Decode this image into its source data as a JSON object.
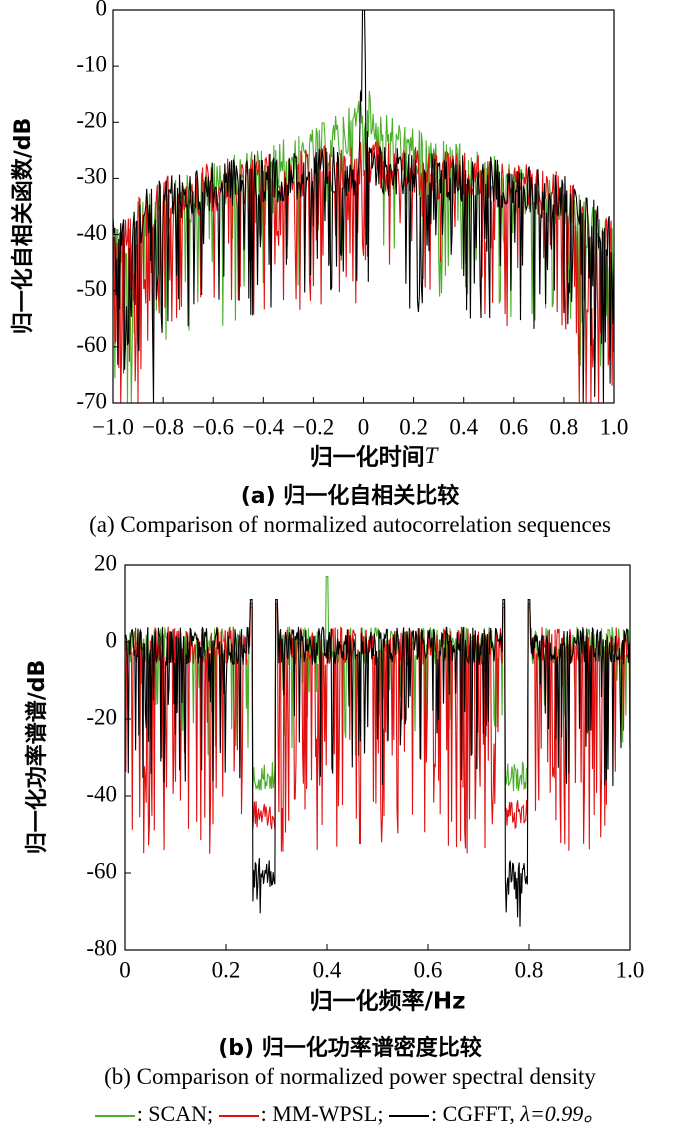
{
  "chart_data": [
    {
      "type": "line",
      "xlabel": "归一化时间",
      "xlabel_var": "T",
      "ylabel": "归一化自相关函数/dB",
      "xlim": [
        -1.0,
        1.0
      ],
      "ylim": [
        -70,
        0
      ],
      "xticks": [
        "−1.0",
        "−0.8",
        "−0.6",
        "−0.4",
        "−0.2",
        "0",
        "0.2",
        "0.4",
        "0.6",
        "0.8",
        "1.0"
      ],
      "yticks": [
        "0",
        "-10",
        "-20",
        "-30",
        "-40",
        "-50",
        "-60",
        "-70"
      ],
      "caption_zh": "(a) 归一化自相关比较",
      "caption_en": "(a) Comparison of normalized autocorrelation sequences",
      "series": [
        {
          "name": "SCAN",
          "color": "#4caf2a",
          "x": [
            -1.0,
            -0.9,
            -0.8,
            -0.6,
            -0.4,
            -0.2,
            -0.05,
            0,
            0.05,
            0.2,
            0.4,
            0.6,
            0.8,
            0.9,
            1.0
          ],
          "y_peak": [
            -38,
            -34,
            -31,
            -27,
            -24,
            -21,
            -17,
            -12,
            -17,
            -21,
            -24,
            -27,
            -31,
            -34,
            -38
          ]
        },
        {
          "name": "MM-WPSL",
          "color": "#e01010",
          "x": [
            -1.0,
            -0.8,
            -0.5,
            0,
            0.5,
            0.8,
            1.0
          ],
          "y_peak": [
            -38,
            -29,
            -26,
            -23,
            -26,
            -29,
            -38
          ]
        },
        {
          "name": "CGFFT, λ=0.99",
          "color": "#000000",
          "x": [
            -1.0,
            -0.8,
            -0.5,
            -0.02,
            0,
            0.02,
            0.5,
            0.8,
            1.0
          ],
          "y_peak": [
            -37,
            -29,
            -26,
            -24,
            0,
            -24,
            -26,
            -29,
            -37
          ]
        }
      ]
    },
    {
      "type": "line",
      "xlabel": "归一化频率/Hz",
      "ylabel": "归一化功率谱谱/dB",
      "xlim": [
        0,
        1.0
      ],
      "ylim": [
        -80,
        20
      ],
      "xticks": [
        "0",
        "0.2",
        "0.4",
        "0.6",
        "0.8",
        "1.0"
      ],
      "yticks": [
        "20",
        "0",
        "-20",
        "-40",
        "-60",
        "-80"
      ],
      "caption_zh": "(b) 归一化功率谱密度比较",
      "caption_en": "(b) Comparison of normalized power spectral density",
      "stopbands": [
        [
          0.25,
          0.3
        ],
        [
          0.75,
          0.8
        ]
      ],
      "series": [
        {
          "name": "SCAN",
          "color": "#4caf2a",
          "passband_level": 0,
          "stopband_level": -35,
          "max": 17
        },
        {
          "name": "MM-WPSL",
          "color": "#e01010",
          "passband_level": 0,
          "stopband_level": -45,
          "min": -55
        },
        {
          "name": "CGFFT, λ=0.99",
          "color": "#000000",
          "passband_level": 0,
          "stopband_level": -60,
          "min": -75
        }
      ]
    }
  ],
  "legend": {
    "items": [
      {
        "label": ": SCAN;",
        "color": "#4caf2a"
      },
      {
        "label": ": MM-WPSL;",
        "color": "#e01010"
      },
      {
        "label": ": CGFFT, ",
        "color": "#000000"
      }
    ],
    "lambda_text": "λ=0.99。"
  }
}
